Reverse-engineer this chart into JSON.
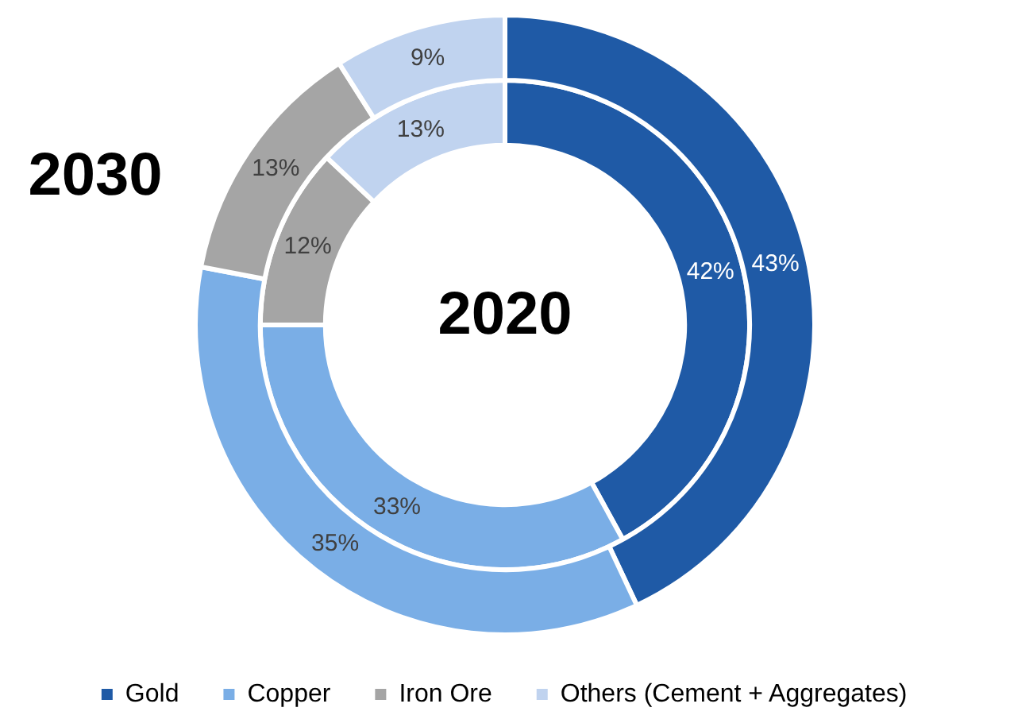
{
  "chart_data": {
    "type": "donut",
    "categories": [
      "Gold",
      "Copper",
      "Iron Ore",
      "Others (Cement + Aggregates)"
    ],
    "series": [
      {
        "name": "2030",
        "values": [
          43,
          35,
          13,
          9
        ],
        "value_labels": [
          "43%",
          "35%",
          "13%",
          "9%"
        ],
        "colors": [
          "#1f5aa6",
          "#7aaee6",
          "#a5a5a5",
          "#c0d3ef"
        ]
      },
      {
        "name": "2020",
        "values": [
          42,
          33,
          12,
          13
        ],
        "value_labels": [
          "42%",
          "33%",
          "12%",
          "13%"
        ],
        "colors": [
          "#1f5aa6",
          "#7aaee6",
          "#a5a5a5",
          "#c0d3ef"
        ]
      }
    ],
    "legend": "bottom"
  }
}
